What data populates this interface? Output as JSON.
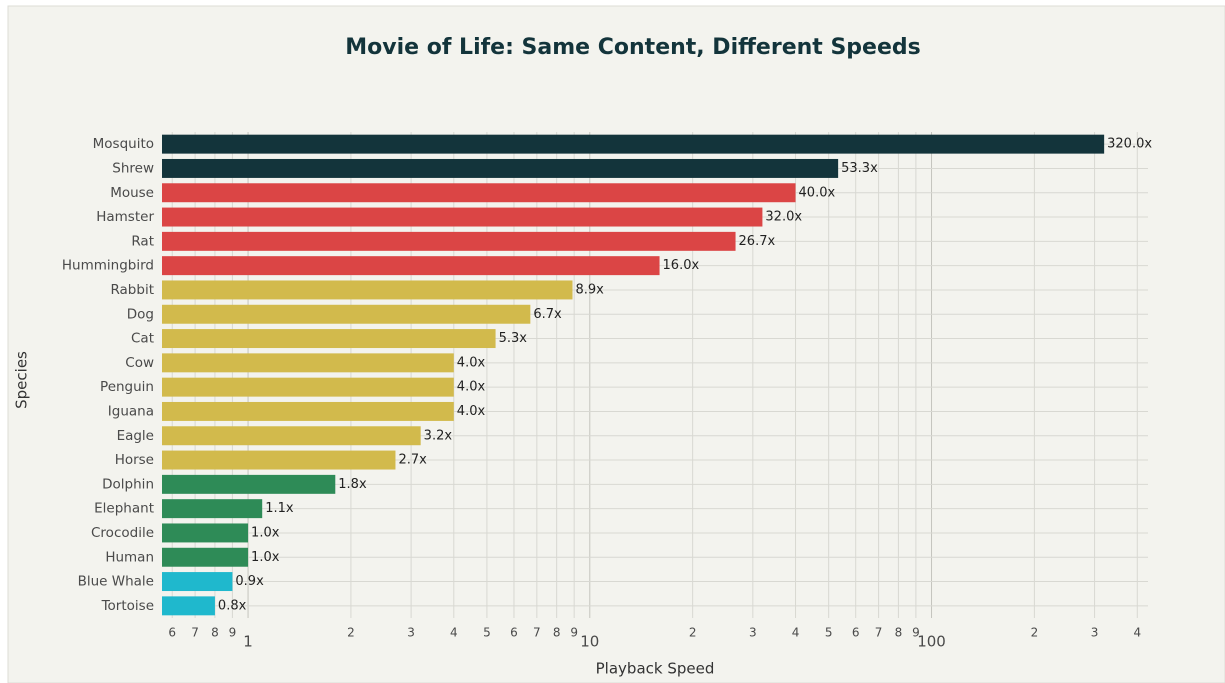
{
  "chart_data": {
    "type": "bar",
    "orientation": "horizontal",
    "title": "Movie of Life: Same Content, Different Speeds",
    "x_label": "Playback Speed",
    "y_label": "Species",
    "categories": [
      "Mosquito",
      "Shrew",
      "Mouse",
      "Hamster",
      "Rat",
      "Hummingbird",
      "Rabbit",
      "Dog",
      "Cat",
      "Cow",
      "Penguin",
      "Iguana",
      "Eagle",
      "Horse",
      "Dolphin",
      "Elephant",
      "Crocodile",
      "Human",
      "Blue Whale",
      "Tortoise"
    ],
    "values": [
      320.0,
      53.3,
      40.0,
      32.0,
      26.7,
      16.0,
      8.9,
      6.7,
      5.3,
      4.0,
      4.0,
      4.0,
      3.2,
      2.7,
      1.8,
      1.1,
      1.0,
      1.0,
      0.9,
      0.8
    ],
    "value_labels": [
      "320.0x",
      "53.3x",
      "40.0x",
      "32.0x",
      "26.7x",
      "16.0x",
      "8.9x",
      "6.7x",
      "5.3x",
      "4.0x",
      "4.0x",
      "4.0x",
      "3.2x",
      "2.7x",
      "1.8x",
      "1.1x",
      "1.0x",
      "1.0x",
      "0.9x",
      "0.8x"
    ],
    "colors": [
      "#13343b",
      "#13343b",
      "#db4545",
      "#db4545",
      "#db4545",
      "#db4545",
      "#d2ba4c",
      "#d2ba4c",
      "#d2ba4c",
      "#d2ba4c",
      "#d2ba4c",
      "#d2ba4c",
      "#d2ba4c",
      "#d2ba4c",
      "#2e8b57",
      "#2e8b57",
      "#2e8b57",
      "#2e8b57",
      "#1fb8cd",
      "#1fb8cd"
    ],
    "x_log": true,
    "xlim": [
      0.56,
      430
    ],
    "xticks": [
      {
        "value": 0.6,
        "label": "6"
      },
      {
        "value": 0.7,
        "label": "7"
      },
      {
        "value": 0.8,
        "label": "8"
      },
      {
        "value": 0.9,
        "label": "9"
      },
      1,
      2,
      3,
      4,
      5,
      6,
      7,
      8,
      9,
      10,
      {
        "value": 20,
        "label": "2"
      },
      {
        "value": 30,
        "label": "3"
      },
      {
        "value": 40,
        "label": "4"
      },
      {
        "value": 50,
        "label": "5"
      },
      {
        "value": 60,
        "label": "6"
      },
      {
        "value": 70,
        "label": "7"
      },
      {
        "value": 80,
        "label": "8"
      },
      {
        "value": 90,
        "label": "9"
      },
      100,
      {
        "value": 200,
        "label": "2"
      },
      {
        "value": 300,
        "label": "3"
      },
      {
        "value": 400,
        "label": "4"
      }
    ],
    "grid": true
  }
}
